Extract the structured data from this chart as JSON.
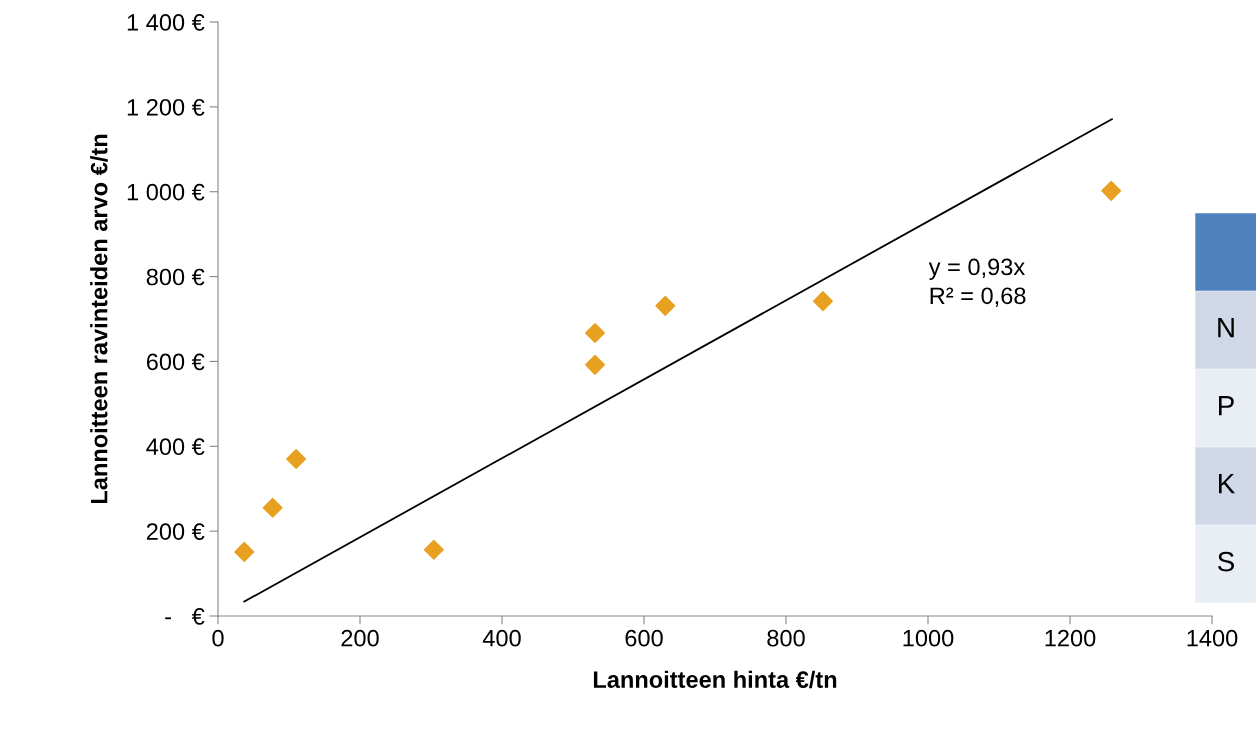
{
  "chart_data": {
    "type": "scatter",
    "xlabel": "Lannoitteen hinta €/tn",
    "ylabel": "Lannoitteen ravinteiden arvo €/tn",
    "series": [
      {
        "color": "#e8a020",
        "marker": "diamond",
        "x": [
          37,
          77,
          110,
          304,
          531,
          531,
          630,
          852,
          1258
        ],
        "values": [
          151,
          255,
          370,
          156,
          667,
          592,
          731,
          742,
          1002
        ]
      },
      {
        "type": "line",
        "color": "#000000",
        "marker": "none",
        "line_style": "solid",
        "x": [
          37,
          1259
        ],
        "values": [
          34,
          1171
        ]
      }
    ],
    "xlim": [
      0,
      1400
    ],
    "xticks": [
      0,
      200,
      400,
      600,
      800,
      1000,
      1200,
      1400
    ],
    "ylim": [
      0,
      1400
    ],
    "yticks": [
      {
        "value": 0,
        "label": "-   €"
      },
      {
        "value": 200,
        "label": "200 €"
      },
      {
        "value": 400,
        "label": "400 €"
      },
      {
        "value": 600,
        "label": "600 €"
      },
      {
        "value": 800,
        "label": "800 €"
      },
      {
        "value": 1000,
        "label": "1 000 €"
      },
      {
        "value": 1200,
        "label": "1 200 €"
      },
      {
        "value": 1400,
        "label": "1 400 €"
      }
    ],
    "grid": false,
    "legend": false,
    "annotations": [
      "y = 0,93x\nR² = 0,68",
      "N",
      "P",
      "K",
      "S"
    ]
  }
}
